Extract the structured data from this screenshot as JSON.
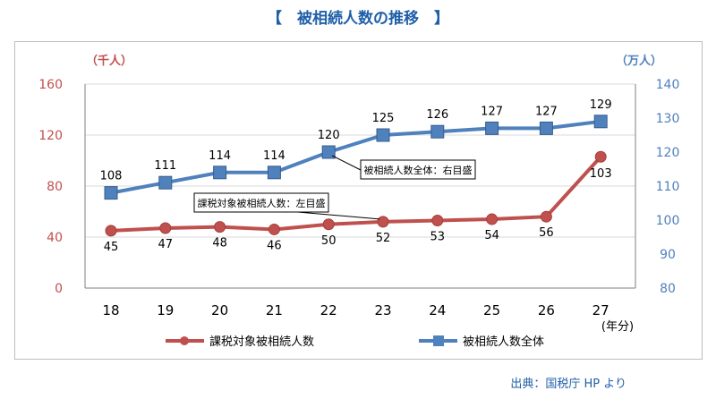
{
  "header": {
    "title": "【　被相続人数の推移　】"
  },
  "footer": {
    "source": "出典：国税庁 HP より"
  },
  "colors": {
    "red": "#c0504d",
    "blue": "#4f81bd",
    "title": "#1f5fa8",
    "grid": "#d9d9d9"
  },
  "chart_data": {
    "type": "line",
    "categories": [
      "18",
      "19",
      "20",
      "21",
      "22",
      "23",
      "24",
      "25",
      "26",
      "27"
    ],
    "xunit": "(年分)",
    "y_left": {
      "unit": "（千人）",
      "min": 0,
      "max": 160,
      "ticks": [
        "0",
        "40",
        "80",
        "120",
        "160"
      ]
    },
    "y_right": {
      "unit": "（万人）",
      "min": 80,
      "max": 140,
      "ticks": [
        "80",
        "90",
        "100",
        "110",
        "120",
        "130",
        "140"
      ]
    },
    "series": [
      {
        "name": "課税対象被相続人数",
        "axis": "left",
        "values": [
          45,
          47,
          48,
          46,
          50,
          52,
          53,
          54,
          56,
          103
        ]
      },
      {
        "name": "被相続人数全体",
        "axis": "right",
        "values": [
          108,
          111,
          114,
          114,
          120,
          125,
          126,
          127,
          127,
          129
        ]
      }
    ],
    "annotations": [
      {
        "text": "被相続人数全体：右目盛",
        "series": "被相続人数全体"
      },
      {
        "text": "課税対象被相続人数：左目盛",
        "series": "課税対象被相続人数"
      }
    ],
    "grid": "horizontal",
    "legend": "bottom"
  }
}
